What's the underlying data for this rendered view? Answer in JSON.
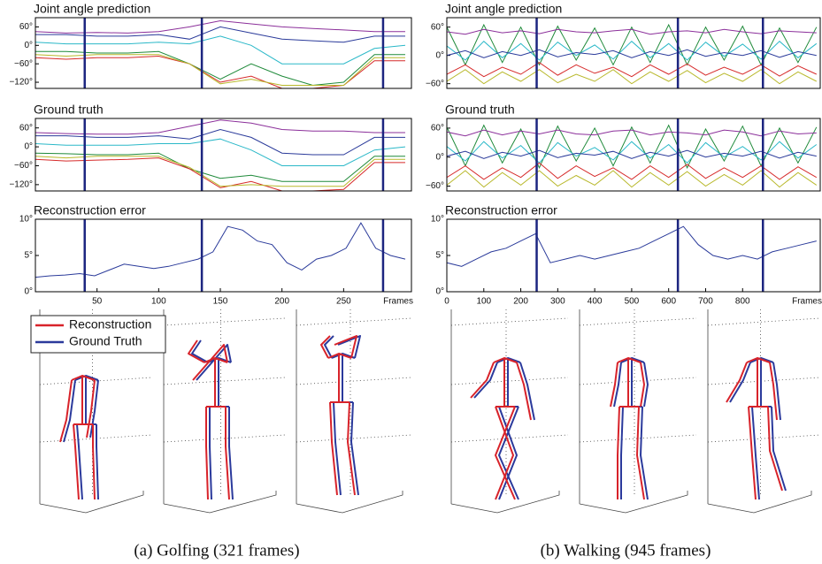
{
  "chart_data": [
    {
      "type": "line",
      "title": "Joint angle prediction",
      "x": [
        0,
        25,
        50,
        75,
        100,
        125,
        150,
        175,
        200,
        225,
        250,
        275,
        300
      ],
      "xlim": [
        0,
        305
      ],
      "ylim": [
        -140,
        90
      ],
      "yticks": [
        {
          "value": 60,
          "label": "60°"
        },
        {
          "value": 0,
          "label": "0°"
        },
        {
          "value": -60,
          "label": "−60°"
        },
        {
          "value": -120,
          "label": "−120°"
        }
      ],
      "markers": [
        40,
        135,
        282
      ],
      "marker_color": "#1c2580",
      "series": [
        {
          "color": "#8b2f9a",
          "values": [
            45,
            40,
            42,
            40,
            45,
            60,
            80,
            70,
            60,
            55,
            50,
            45,
            45
          ]
        },
        {
          "color": "#1f8a3a",
          "values": [
            -20,
            -20,
            -25,
            -25,
            -20,
            -60,
            -110,
            -60,
            -100,
            -130,
            -120,
            -30,
            -30
          ]
        },
        {
          "color": "#d62a2a",
          "values": [
            -40,
            -45,
            -40,
            -40,
            -35,
            -60,
            -120,
            -100,
            -140,
            -140,
            -130,
            -50,
            -50
          ]
        },
        {
          "color": "#b8b82a",
          "values": [
            -30,
            -35,
            -30,
            -30,
            -30,
            -60,
            -125,
            -110,
            -130,
            -130,
            -130,
            -40,
            -40
          ]
        },
        {
          "color": "#2ab8c8",
          "values": [
            10,
            5,
            5,
            5,
            10,
            5,
            30,
            0,
            -60,
            -60,
            -60,
            -10,
            0
          ]
        },
        {
          "color": "#2a3a9a",
          "values": [
            35,
            35,
            30,
            30,
            35,
            20,
            60,
            40,
            20,
            15,
            10,
            30,
            30
          ]
        }
      ]
    },
    {
      "type": "line",
      "title": "Ground truth",
      "x": [
        0,
        25,
        50,
        75,
        100,
        125,
        150,
        175,
        200,
        225,
        250,
        275,
        300
      ],
      "xlim": [
        0,
        305
      ],
      "ylim": [
        -140,
        90
      ],
      "yticks": [
        {
          "value": 60,
          "label": "60°"
        },
        {
          "value": 0,
          "label": "0°"
        },
        {
          "value": -60,
          "label": "−60°"
        },
        {
          "value": -120,
          "label": "−120°"
        }
      ],
      "markers": [
        40,
        135,
        282
      ],
      "marker_color": "#1c2580",
      "series": [
        {
          "color": "#8b2f9a",
          "values": [
            45,
            42,
            40,
            40,
            45,
            65,
            85,
            75,
            55,
            50,
            50,
            45,
            45
          ]
        },
        {
          "color": "#1f8a3a",
          "values": [
            -20,
            -22,
            -25,
            -25,
            -20,
            -70,
            -100,
            -90,
            -110,
            -110,
            -110,
            -30,
            -30
          ]
        },
        {
          "color": "#d62a2a",
          "values": [
            -40,
            -45,
            -42,
            -40,
            -35,
            -70,
            -130,
            -110,
            -140,
            -140,
            -135,
            -50,
            -50
          ]
        },
        {
          "color": "#b8b82a",
          "values": [
            -30,
            -35,
            -30,
            -30,
            -30,
            -65,
            -125,
            -120,
            -125,
            -125,
            -125,
            -40,
            -40
          ]
        },
        {
          "color": "#2ab8c8",
          "values": [
            10,
            5,
            5,
            5,
            10,
            10,
            25,
            -10,
            -60,
            -60,
            -60,
            -10,
            0
          ]
        },
        {
          "color": "#2a3a9a",
          "values": [
            35,
            35,
            30,
            30,
            35,
            25,
            55,
            30,
            -20,
            -25,
            -25,
            30,
            30
          ]
        }
      ]
    },
    {
      "type": "line",
      "title": "Reconstruction error",
      "xlabel": "Frames",
      "x": [
        0,
        12,
        24,
        36,
        48,
        60,
        72,
        84,
        96,
        108,
        120,
        132,
        144,
        156,
        168,
        180,
        192,
        204,
        216,
        228,
        240,
        252,
        264,
        276,
        288,
        300
      ],
      "xlim": [
        0,
        305
      ],
      "ylim": [
        0,
        10
      ],
      "yticks": [
        {
          "value": 0,
          "label": "0°"
        },
        {
          "value": 5,
          "label": "5°"
        },
        {
          "value": 10,
          "label": "10°"
        }
      ],
      "xticks": [
        50,
        100,
        150,
        200,
        250
      ],
      "markers": [
        40,
        135,
        282
      ],
      "marker_color": "#1c2580",
      "series": [
        {
          "color": "#2a3a9a",
          "values": [
            2,
            2.2,
            2.3,
            2.5,
            2.2,
            3,
            3.8,
            3.5,
            3.2,
            3.5,
            4,
            4.5,
            5.5,
            9,
            8.5,
            7,
            6.5,
            4,
            3,
            4.5,
            5,
            6,
            9.5,
            6,
            5,
            4.5
          ]
        }
      ]
    },
    {
      "type": "line",
      "title": "Joint angle prediction",
      "x": [
        0,
        50,
        100,
        150,
        200,
        250,
        300,
        350,
        400,
        450,
        500,
        550,
        600,
        650,
        700,
        750,
        800,
        850,
        900,
        950,
        1000
      ],
      "xlim": [
        0,
        1010
      ],
      "ylim": [
        -70,
        80
      ],
      "yticks": [
        {
          "value": 60,
          "label": "60°"
        },
        {
          "value": 0,
          "label": "0°"
        },
        {
          "value": -60,
          "label": "−60°"
        }
      ],
      "markers": [
        243,
        625,
        855
      ],
      "marker_color": "#1c2580",
      "series": [
        {
          "color": "#1f8a3a",
          "values": [
            60,
            -20,
            65,
            -15,
            60,
            -20,
            62,
            -10,
            58,
            -20,
            60,
            -15,
            65,
            -20,
            60,
            -10,
            62,
            -20,
            58,
            -15,
            60
          ]
        },
        {
          "color": "#8b2f9a",
          "values": [
            50,
            45,
            55,
            48,
            52,
            46,
            55,
            50,
            48,
            52,
            55,
            45,
            50,
            52,
            48,
            55,
            50,
            46,
            52,
            50,
            48
          ]
        },
        {
          "color": "#2ab8c8",
          "values": [
            20,
            -10,
            30,
            -5,
            25,
            -10,
            28,
            0,
            22,
            -8,
            30,
            -5,
            25,
            -10,
            28,
            -2,
            24,
            -8,
            30,
            -5,
            25
          ]
        },
        {
          "color": "#d62a2a",
          "values": [
            -40,
            -20,
            -45,
            -25,
            -40,
            -15,
            -42,
            -20,
            -38,
            -25,
            -45,
            -20,
            -40,
            -18,
            -42,
            -25,
            -40,
            -20,
            -44,
            -22,
            -40
          ]
        },
        {
          "color": "#b8b82a",
          "values": [
            -55,
            -30,
            -60,
            -35,
            -55,
            -30,
            -58,
            -40,
            -55,
            -30,
            -60,
            -35,
            -55,
            -32,
            -58,
            -38,
            -55,
            -30,
            -60,
            -35,
            -55
          ]
        },
        {
          "color": "#2a3a9a",
          "values": [
            0,
            10,
            -5,
            8,
            0,
            12,
            -3,
            6,
            2,
            10,
            -5,
            8,
            0,
            12,
            -2,
            6,
            0,
            10,
            -4,
            8,
            0
          ]
        }
      ]
    },
    {
      "type": "line",
      "title": "Ground truth",
      "x": [
        0,
        50,
        100,
        150,
        200,
        250,
        300,
        350,
        400,
        450,
        500,
        550,
        600,
        650,
        700,
        750,
        800,
        850,
        900,
        950,
        1000
      ],
      "xlim": [
        0,
        1010
      ],
      "ylim": [
        -70,
        80
      ],
      "yticks": [
        {
          "value": 60,
          "label": "60°"
        },
        {
          "value": 0,
          "label": "0°"
        },
        {
          "value": -60,
          "label": "−60°"
        }
      ],
      "markers": [
        243,
        625,
        855
      ],
      "marker_color": "#1c2580",
      "series": [
        {
          "color": "#1f8a3a",
          "values": [
            62,
            -18,
            66,
            -12,
            58,
            -22,
            64,
            -8,
            60,
            -18,
            62,
            -12,
            66,
            -22,
            58,
            -8,
            64,
            -18,
            60,
            -12,
            62
          ]
        },
        {
          "color": "#8b2f9a",
          "values": [
            52,
            44,
            56,
            46,
            54,
            48,
            56,
            48,
            46,
            54,
            56,
            46,
            52,
            50,
            46,
            56,
            52,
            44,
            54,
            48,
            50
          ]
        },
        {
          "color": "#2ab8c8",
          "values": [
            22,
            -8,
            32,
            -2,
            24,
            -12,
            30,
            2,
            20,
            -6,
            32,
            -2,
            26,
            -12,
            30,
            0,
            22,
            -6,
            32,
            -2,
            26
          ]
        },
        {
          "color": "#d62a2a",
          "values": [
            -42,
            -18,
            -46,
            -22,
            -42,
            -12,
            -44,
            -18,
            -40,
            -22,
            -46,
            -18,
            -42,
            -15,
            -44,
            -22,
            -42,
            -18,
            -46,
            -20,
            -42
          ]
        },
        {
          "color": "#b8b82a",
          "values": [
            -58,
            -28,
            -62,
            -32,
            -58,
            -28,
            -60,
            -38,
            -58,
            -28,
            -62,
            -32,
            -58,
            -30,
            -60,
            -36,
            -58,
            -28,
            -62,
            -32,
            -58
          ]
        },
        {
          "color": "#2a3a9a",
          "values": [
            2,
            12,
            -3,
            10,
            2,
            14,
            -1,
            8,
            4,
            12,
            -3,
            10,
            2,
            14,
            0,
            8,
            2,
            12,
            -2,
            10,
            2
          ]
        }
      ]
    },
    {
      "type": "line",
      "title": "Reconstruction error",
      "xlabel": "Frames",
      "x": [
        0,
        40,
        80,
        120,
        160,
        200,
        240,
        280,
        320,
        360,
        400,
        440,
        480,
        520,
        560,
        600,
        640,
        680,
        720,
        760,
        800,
        840,
        880,
        920,
        960,
        1000
      ],
      "xlim": [
        0,
        1010
      ],
      "ylim": [
        0,
        10
      ],
      "yticks": [
        {
          "value": 0,
          "label": "0°"
        },
        {
          "value": 5,
          "label": "5°"
        },
        {
          "value": 10,
          "label": "10°"
        }
      ],
      "xticks": [
        0,
        100,
        200,
        300,
        400,
        500,
        600,
        700,
        800
      ],
      "markers": [
        243,
        625,
        855
      ],
      "marker_color": "#1c2580",
      "series": [
        {
          "color": "#2a3a9a",
          "values": [
            4,
            3.5,
            4.5,
            5.5,
            6,
            7,
            8,
            4,
            4.5,
            5,
            4.5,
            5,
            5.5,
            6,
            7,
            8,
            9,
            6.5,
            5,
            4.5,
            5,
            4.5,
            5.5,
            6,
            6.5,
            7
          ]
        }
      ]
    }
  ],
  "skeleton_legend": [
    {
      "name": "Reconstruction",
      "color": "#d8232a"
    },
    {
      "name": "Ground Truth",
      "color": "#2b3a9c"
    }
  ],
  "captions": [
    "(a) Golfing (321 frames)",
    "(b) Walking (945 frames)"
  ]
}
